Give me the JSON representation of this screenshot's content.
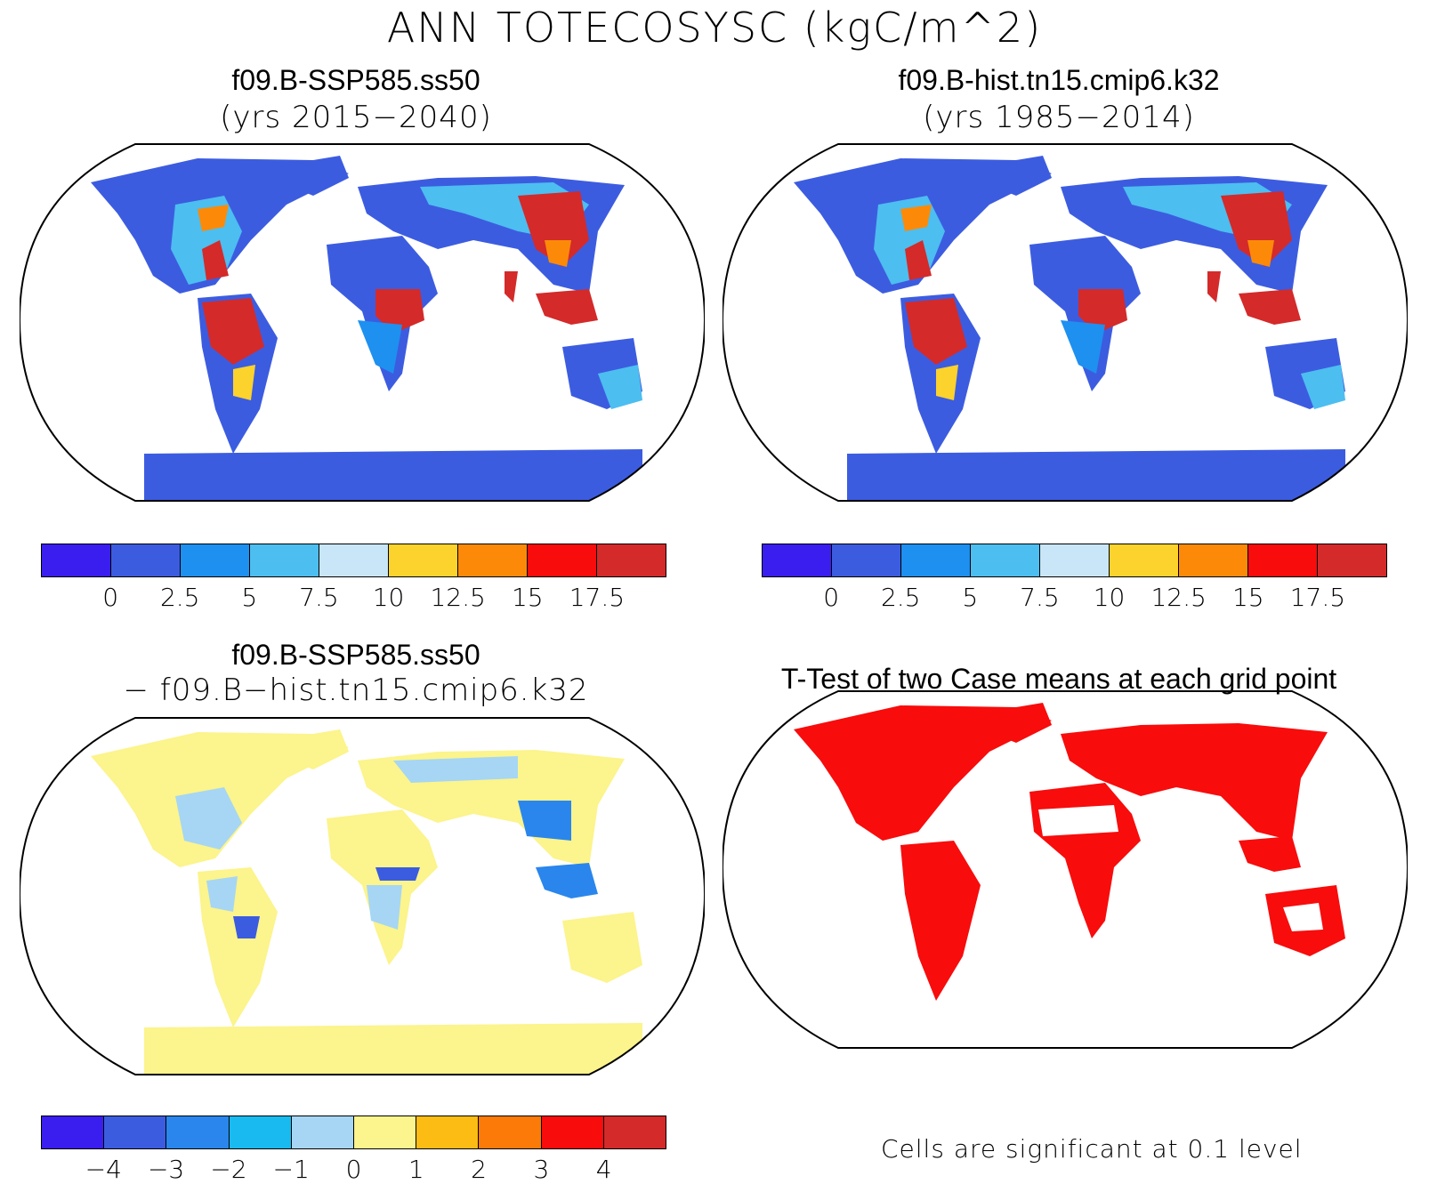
{
  "main_title": "ANN TOTECOSYSC (kgC/m^2)",
  "panels": [
    {
      "title": "f09.B-SSP585.ss50",
      "subtitle": "(yrs 2015−2040)"
    },
    {
      "title": "f09.B-hist.tn15.cmip6.k32",
      "subtitle": "(yrs 1985−2014)"
    },
    {
      "title": "f09.B-SSP585.ss50",
      "subtitle": "− f09.B−hist.tn15.cmip6.k32"
    },
    {
      "title": "T-Test of two Case means at each grid point",
      "subtitle": ""
    }
  ],
  "colorbar_top": {
    "labels": [
      "0",
      "2.5",
      "5",
      "7.5",
      "10",
      "12.5",
      "15",
      "17.5"
    ],
    "colors": [
      "#3a1ef0",
      "#3c5ce0",
      "#1e90f0",
      "#4cbef0",
      "#c8e6f8",
      "#fcd22c",
      "#fc8a08",
      "#f80c0c",
      "#d42a2a"
    ]
  },
  "colorbar_diff": {
    "labels": [
      "−4",
      "−3",
      "−2",
      "−1",
      "0",
      "1",
      "2",
      "3",
      "4"
    ],
    "colors": [
      "#3a1ef0",
      "#3c5ce0",
      "#2a86ec",
      "#18baf0",
      "#a6d6f4",
      "#fcf48c",
      "#fcbc14",
      "#fc7a08",
      "#f80c0c",
      "#d42a2a"
    ]
  },
  "significance_note": "Cells are significant at 0.1 level"
}
